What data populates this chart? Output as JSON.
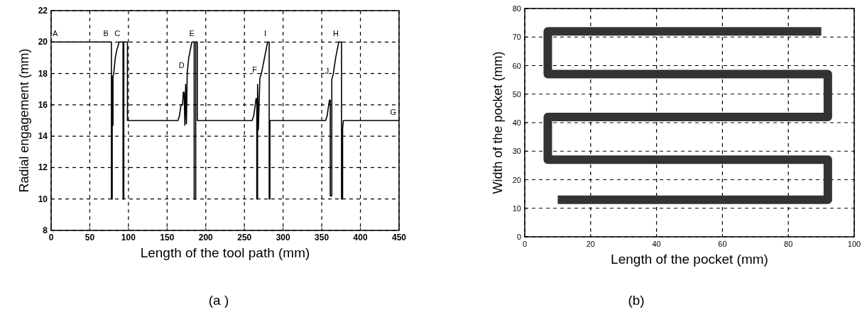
{
  "chart_data": [
    {
      "type": "line",
      "title": "(a )",
      "xlabel": "Length of the tool path (mm)",
      "ylabel": "Radial engagement (mm)",
      "xlim": [
        0,
        450
      ],
      "xticks": [
        0,
        50,
        100,
        150,
        200,
        250,
        300,
        350,
        400,
        450
      ],
      "ylim": [
        8,
        22
      ],
      "yticks": [
        8,
        10,
        12,
        14,
        16,
        18,
        20,
        22
      ],
      "grid": true,
      "series": [
        {
          "color": "#000000",
          "x": [
            0,
            78,
            78,
            79,
            79,
            80,
            80,
            81,
            83,
            85,
            88,
            93,
            93,
            94,
            94,
            98.7,
            98.7,
            164,
            166,
            168,
            170,
            171,
            172,
            173,
            174,
            175,
            176,
            178,
            182,
            185,
            185,
            187,
            187,
            189,
            189,
            260,
            262,
            264,
            265,
            266,
            266,
            267,
            267,
            268,
            270,
            272,
            276,
            280,
            282,
            282,
            283,
            283,
            355,
            357,
            359,
            360,
            361,
            361,
            363,
            363,
            365,
            368,
            372,
            375.6,
            375.6,
            377,
            377,
            378,
            450
          ],
          "values": [
            20,
            20,
            10,
            10,
            17.8,
            14.7,
            17.8,
            18,
            19,
            19.5,
            20,
            20,
            10,
            10,
            20,
            20,
            15,
            15,
            15.3,
            16,
            16,
            16.8,
            16.8,
            14.7,
            17.3,
            14.8,
            18,
            19,
            20,
            20,
            10,
            10,
            20,
            20,
            15,
            15,
            15.3,
            16,
            16.4,
            16.4,
            10,
            10,
            17.3,
            14.4,
            17.7,
            18,
            19,
            20,
            20,
            10,
            10,
            15,
            15,
            15.3,
            16,
            16.3,
            16.3,
            10.2,
            10.2,
            17.6,
            18,
            19,
            20,
            20,
            10,
            10,
            14.5,
            15,
            15
          ]
        }
      ],
      "annotations": [
        {
          "text": "A",
          "x": 0,
          "y": 20
        },
        {
          "text": "B",
          "x": 78,
          "y": 20
        },
        {
          "text": "C",
          "x": 93,
          "y": 20
        },
        {
          "text": "D",
          "x": 176,
          "y": 18
        },
        {
          "text": "E",
          "x": 189,
          "y": 20
        },
        {
          "text": "F",
          "x": 270,
          "y": 17.7
        },
        {
          "text": "I",
          "x": 282,
          "y": 20
        },
        {
          "text": "J",
          "x": 363,
          "y": 17.6
        },
        {
          "text": "H",
          "x": 375.6,
          "y": 20
        },
        {
          "text": "G",
          "x": 450,
          "y": 15
        }
      ]
    },
    {
      "type": "line",
      "title": "(b)",
      "xlabel": "Length of the pocket (mm)",
      "ylabel": "Width of the pocket (mm)",
      "xlim": [
        0,
        100
      ],
      "xticks": [
        0,
        20,
        40,
        60,
        80,
        100
      ],
      "ylim": [
        0,
        80
      ],
      "yticks": [
        0,
        10,
        20,
        30,
        40,
        50,
        60,
        70,
        80
      ],
      "grid": true,
      "series": [
        {
          "color": "#333333",
          "x": [
            10,
            92,
            92,
            7,
            7,
            92,
            92,
            7,
            7,
            90
          ],
          "values": [
            13,
            13,
            27,
            27,
            42,
            42,
            57,
            57,
            72,
            72
          ]
        }
      ]
    }
  ]
}
